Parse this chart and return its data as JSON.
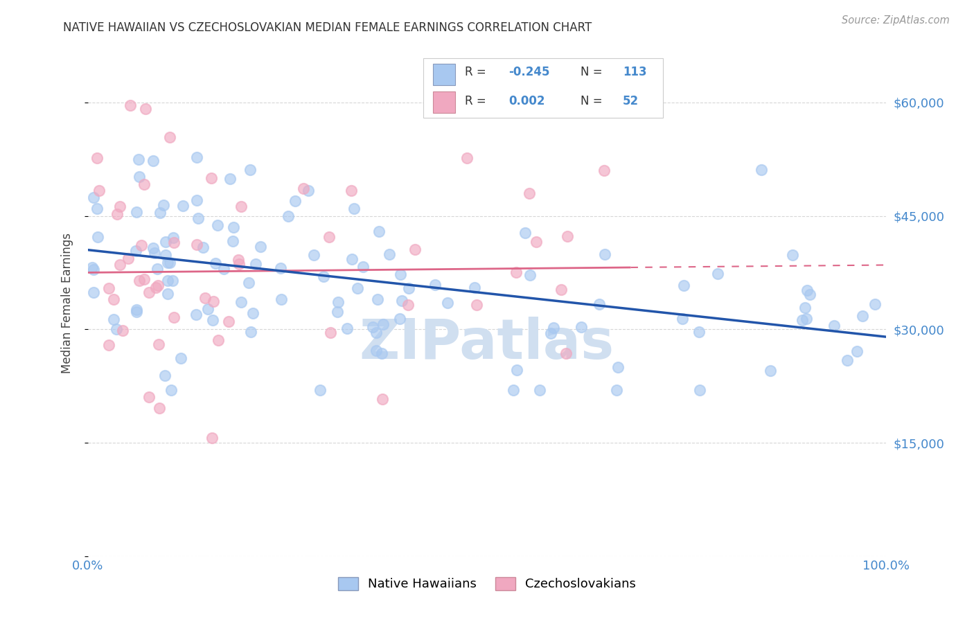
{
  "title": "NATIVE HAWAIIAN VS CZECHOSLOVAKIAN MEDIAN FEMALE EARNINGS CORRELATION CHART",
  "source": "Source: ZipAtlas.com",
  "ylabel": "Median Female Earnings",
  "xlim": [
    0,
    1
  ],
  "ylim": [
    0,
    67000
  ],
  "yticks": [
    0,
    15000,
    30000,
    45000,
    60000
  ],
  "ytick_labels": [
    "",
    "$15,000",
    "$30,000",
    "$45,000",
    "$60,000"
  ],
  "blue_color": "#a8c8f0",
  "pink_color": "#f0a8c0",
  "blue_line_color": "#2255aa",
  "pink_line_color": "#dd6688",
  "axis_color": "#4488cc",
  "grid_color": "#cccccc",
  "watermark_color": "#d0dff0",
  "blue_n": 113,
  "pink_n": 52,
  "blue_trend_x0": 0,
  "blue_trend_y0": 40500,
  "blue_trend_x1": 1,
  "blue_trend_y1": 29000,
  "pink_trend_x0": 0,
  "pink_trend_y0": 37500,
  "pink_trend_x1": 1,
  "pink_trend_y1": 38500
}
